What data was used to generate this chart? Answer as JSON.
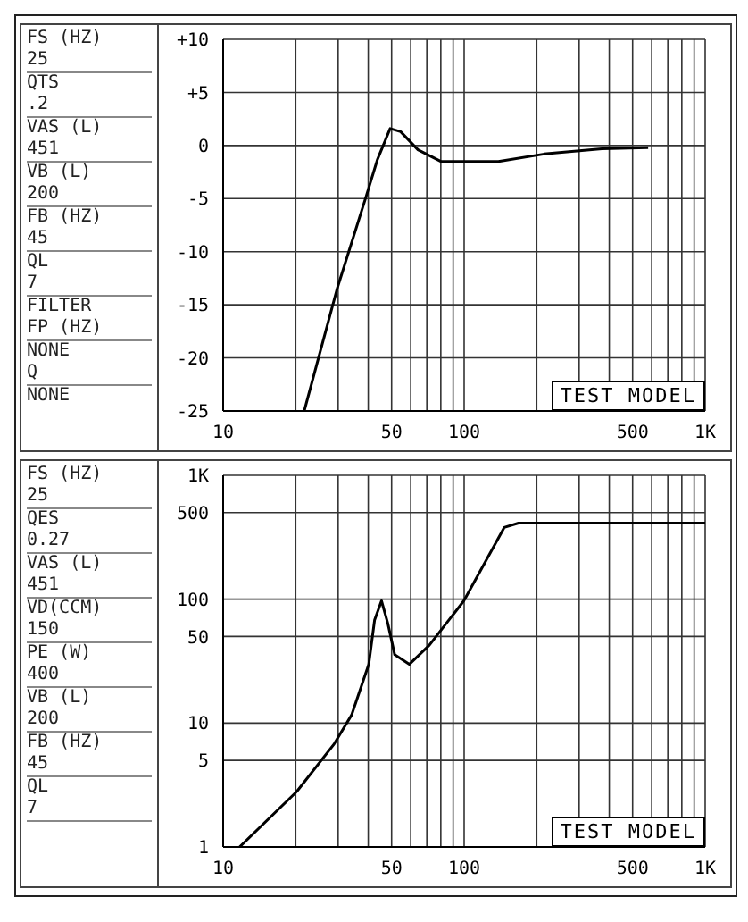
{
  "chart_data": [
    {
      "type": "line",
      "log": "x",
      "grid": true,
      "marker": "none",
      "line_style": "solid",
      "xlim": [
        10,
        1000
      ],
      "xticks": [
        10,
        {
          "value": 20,
          "label": null
        },
        {
          "value": 30,
          "label": null
        },
        {
          "value": 40,
          "label": null
        },
        50,
        {
          "value": 60,
          "label": null
        },
        {
          "value": 70,
          "label": null
        },
        {
          "value": 80,
          "label": null
        },
        {
          "value": 90,
          "label": null
        },
        100,
        {
          "value": 200,
          "label": null
        },
        {
          "value": 300,
          "label": null
        },
        {
          "value": 400,
          "label": null
        },
        500,
        {
          "value": 600,
          "label": null
        },
        {
          "value": 700,
          "label": null
        },
        {
          "value": 800,
          "label": null
        },
        {
          "value": 900,
          "label": null
        },
        {
          "value": 1000,
          "label": "1K"
        }
      ],
      "ylim": [
        -25,
        10
      ],
      "yticks": [
        {
          "value": 10,
          "label": "+10"
        },
        {
          "value": 5,
          "label": "+5"
        },
        0,
        -5,
        -10,
        -15,
        -20,
        -25
      ],
      "series": [
        {
          "color": "#000000",
          "x": [
            21.7,
            29.7,
            39.2,
            43.7,
            49.3,
            54.5,
            64.3,
            80,
            138.7,
            215,
            373,
            580
          ],
          "values": [
            -25,
            -13.5,
            -4.8,
            -1.3,
            1.6,
            1.3,
            -0.4,
            -1.5,
            -1.5,
            -0.8,
            -0.3,
            -0.2
          ]
        }
      ],
      "annotations": [
        "FS (HZ)",
        "25",
        "QTS",
        ".2",
        "VAS (L)",
        "451",
        "VB (L)",
        "200",
        "FB (HZ)",
        "45",
        "QL",
        "7",
        "FILTER",
        "FP (HZ)",
        "NONE",
        "Q",
        "NONE",
        "TEST MODEL"
      ]
    },
    {
      "type": "line",
      "log": "xy",
      "grid": true,
      "marker": "none",
      "line_style": "solid",
      "xlim": [
        10,
        1000
      ],
      "xticks": [
        10,
        {
          "value": 20,
          "label": null
        },
        {
          "value": 30,
          "label": null
        },
        {
          "value": 40,
          "label": null
        },
        50,
        {
          "value": 60,
          "label": null
        },
        {
          "value": 70,
          "label": null
        },
        {
          "value": 80,
          "label": null
        },
        {
          "value": 90,
          "label": null
        },
        100,
        {
          "value": 200,
          "label": null
        },
        {
          "value": 300,
          "label": null
        },
        {
          "value": 400,
          "label": null
        },
        500,
        {
          "value": 600,
          "label": null
        },
        {
          "value": 700,
          "label": null
        },
        {
          "value": 800,
          "label": null
        },
        {
          "value": 900,
          "label": null
        },
        {
          "value": 1000,
          "label": "1K"
        }
      ],
      "ylim": [
        1,
        1000
      ],
      "yticks": [
        1,
        5,
        10,
        50,
        100,
        500,
        {
          "value": 1000,
          "label": "1K"
        }
      ],
      "series": [
        {
          "color": "#000000",
          "x": [
            11.7,
            20.2,
            28.9,
            34.1,
            40.2,
            42.5,
            45.4,
            48.2,
            51.5,
            59.2,
            71.7,
            99.7,
            146.6,
            168,
            1000
          ],
          "values": [
            1,
            2.8,
            6.8,
            11.6,
            29.8,
            68,
            97,
            64,
            35.6,
            29.8,
            42.5,
            97,
            379,
            411,
            411
          ]
        }
      ],
      "annotations": [
        "FS (HZ)",
        "25",
        "QES",
        "0.27",
        "VAS (L)",
        "451",
        "VD(CCM)",
        "150",
        "PE (W)",
        "400",
        "VB (L)",
        "200",
        "FB (HZ)",
        "45",
        "QL",
        "7",
        "TEST MODEL"
      ]
    }
  ]
}
